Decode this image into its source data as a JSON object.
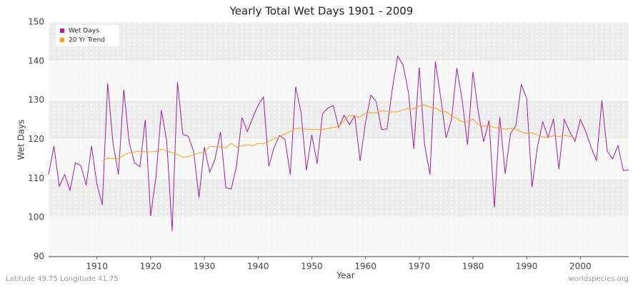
{
  "chart_data": {
    "type": "line",
    "title": "Yearly Total Wet Days 1901 - 2009",
    "x_label": "Year",
    "y_label": "Wet Days",
    "footer_left": "Latitude 49.75 Longitude 41.75",
    "footer_right": "worldspecies.org",
    "legend_position": "top-left",
    "grid": true,
    "xlim": [
      1901,
      2009
    ],
    "ylim": [
      90,
      150
    ],
    "xticks": [
      1910,
      1920,
      1930,
      1940,
      1950,
      1960,
      1970,
      1980,
      1990,
      2000
    ],
    "yticks": [
      90,
      100,
      110,
      120,
      130,
      140,
      150
    ],
    "x": [
      1901,
      1902,
      1903,
      1904,
      1905,
      1906,
      1907,
      1908,
      1909,
      1910,
      1911,
      1912,
      1913,
      1914,
      1915,
      1916,
      1917,
      1918,
      1919,
      1920,
      1921,
      1922,
      1923,
      1924,
      1925,
      1926,
      1927,
      1928,
      1929,
      1930,
      1931,
      1932,
      1933,
      1934,
      1935,
      1936,
      1937,
      1938,
      1939,
      1940,
      1941,
      1942,
      1943,
      1944,
      1945,
      1946,
      1947,
      1948,
      1949,
      1950,
      1951,
      1952,
      1953,
      1954,
      1955,
      1956,
      1957,
      1958,
      1959,
      1960,
      1961,
      1962,
      1963,
      1964,
      1965,
      1966,
      1967,
      1968,
      1969,
      1970,
      1971,
      1972,
      1973,
      1974,
      1975,
      1976,
      1977,
      1978,
      1979,
      1980,
      1981,
      1982,
      1983,
      1984,
      1985,
      1986,
      1987,
      1988,
      1989,
      1990,
      1991,
      1992,
      1993,
      1994,
      1995,
      1996,
      1997,
      1998,
      1999,
      2000,
      2001,
      2002,
      2003,
      2004,
      2005,
      2006,
      2007,
      2008,
      2009
    ],
    "series": [
      {
        "name": "Wet Days",
        "color": "#a020a0",
        "values": [
          111,
          118.3,
          108,
          111,
          107,
          114,
          113.3,
          108.3,
          118.3,
          108.5,
          103.2,
          134.3,
          119,
          111,
          132.7,
          119.3,
          114,
          113,
          125,
          100.4,
          110.5,
          127.5,
          119.5,
          96.5,
          134.6,
          121.2,
          120.8,
          117,
          105.1,
          118,
          111.6,
          115,
          121.9,
          107.6,
          107.3,
          113.3,
          125.6,
          122,
          125.5,
          128.7,
          130.8,
          113.1,
          118,
          121,
          120,
          111,
          133.5,
          126.9,
          112.1,
          121.2,
          113.8,
          126.6,
          128,
          128.7,
          123,
          126.2,
          123.8,
          126,
          114.5,
          124.3,
          131.3,
          129.6,
          122.5,
          122.7,
          133,
          141.3,
          139,
          132,
          117.6,
          138.4,
          118.7,
          111,
          139.9,
          130.7,
          120.4,
          125,
          138.2,
          130,
          118.6,
          137.3,
          127,
          119.4,
          124.8,
          102.6,
          125.7,
          111.2,
          121.5,
          123.5,
          134.1,
          130.4,
          107.8,
          118,
          124.5,
          120.5,
          125.3,
          112.4,
          125.1,
          122,
          119.5,
          125.1,
          122,
          118,
          114.5,
          130,
          117,
          115,
          118.4,
          112,
          112.2
        ]
      },
      {
        "name": "20 Yr Trend",
        "color": "#ffa010",
        "values": [
          null,
          null,
          null,
          null,
          null,
          null,
          null,
          null,
          null,
          null,
          114.4,
          115.2,
          115.1,
          115,
          116,
          116.5,
          116.8,
          117,
          116.8,
          116.8,
          116.9,
          117.5,
          117,
          116.6,
          116.2,
          115.4,
          115.6,
          116,
          116.5,
          116.8,
          118.2,
          118.2,
          118,
          117.8,
          119,
          118,
          118.3,
          118.6,
          118.4,
          119,
          118.9,
          119.4,
          120.3,
          120.6,
          121.4,
          122,
          122.8,
          122.8,
          122.6,
          122.5,
          122.5,
          122.5,
          122.8,
          123,
          123.3,
          124.8,
          126.2,
          126,
          125.6,
          126.8,
          126.8,
          126.8,
          127.3,
          127.2,
          127,
          127.1,
          127.6,
          127.8,
          127.8,
          128.6,
          128.8,
          128.3,
          128,
          127.2,
          127.1,
          126,
          125.3,
          124.5,
          124.6,
          125.2,
          123.7,
          123.4,
          123.6,
          123,
          122.9,
          122.6,
          122.8,
          122.6,
          121.9,
          121.5,
          121.7,
          121.1,
          120.6,
          120.6,
          120.9,
          120.7,
          121,
          120.8,
          120.4,
          null,
          null,
          null,
          null,
          null,
          null,
          null,
          null,
          null,
          null
        ]
      }
    ]
  }
}
